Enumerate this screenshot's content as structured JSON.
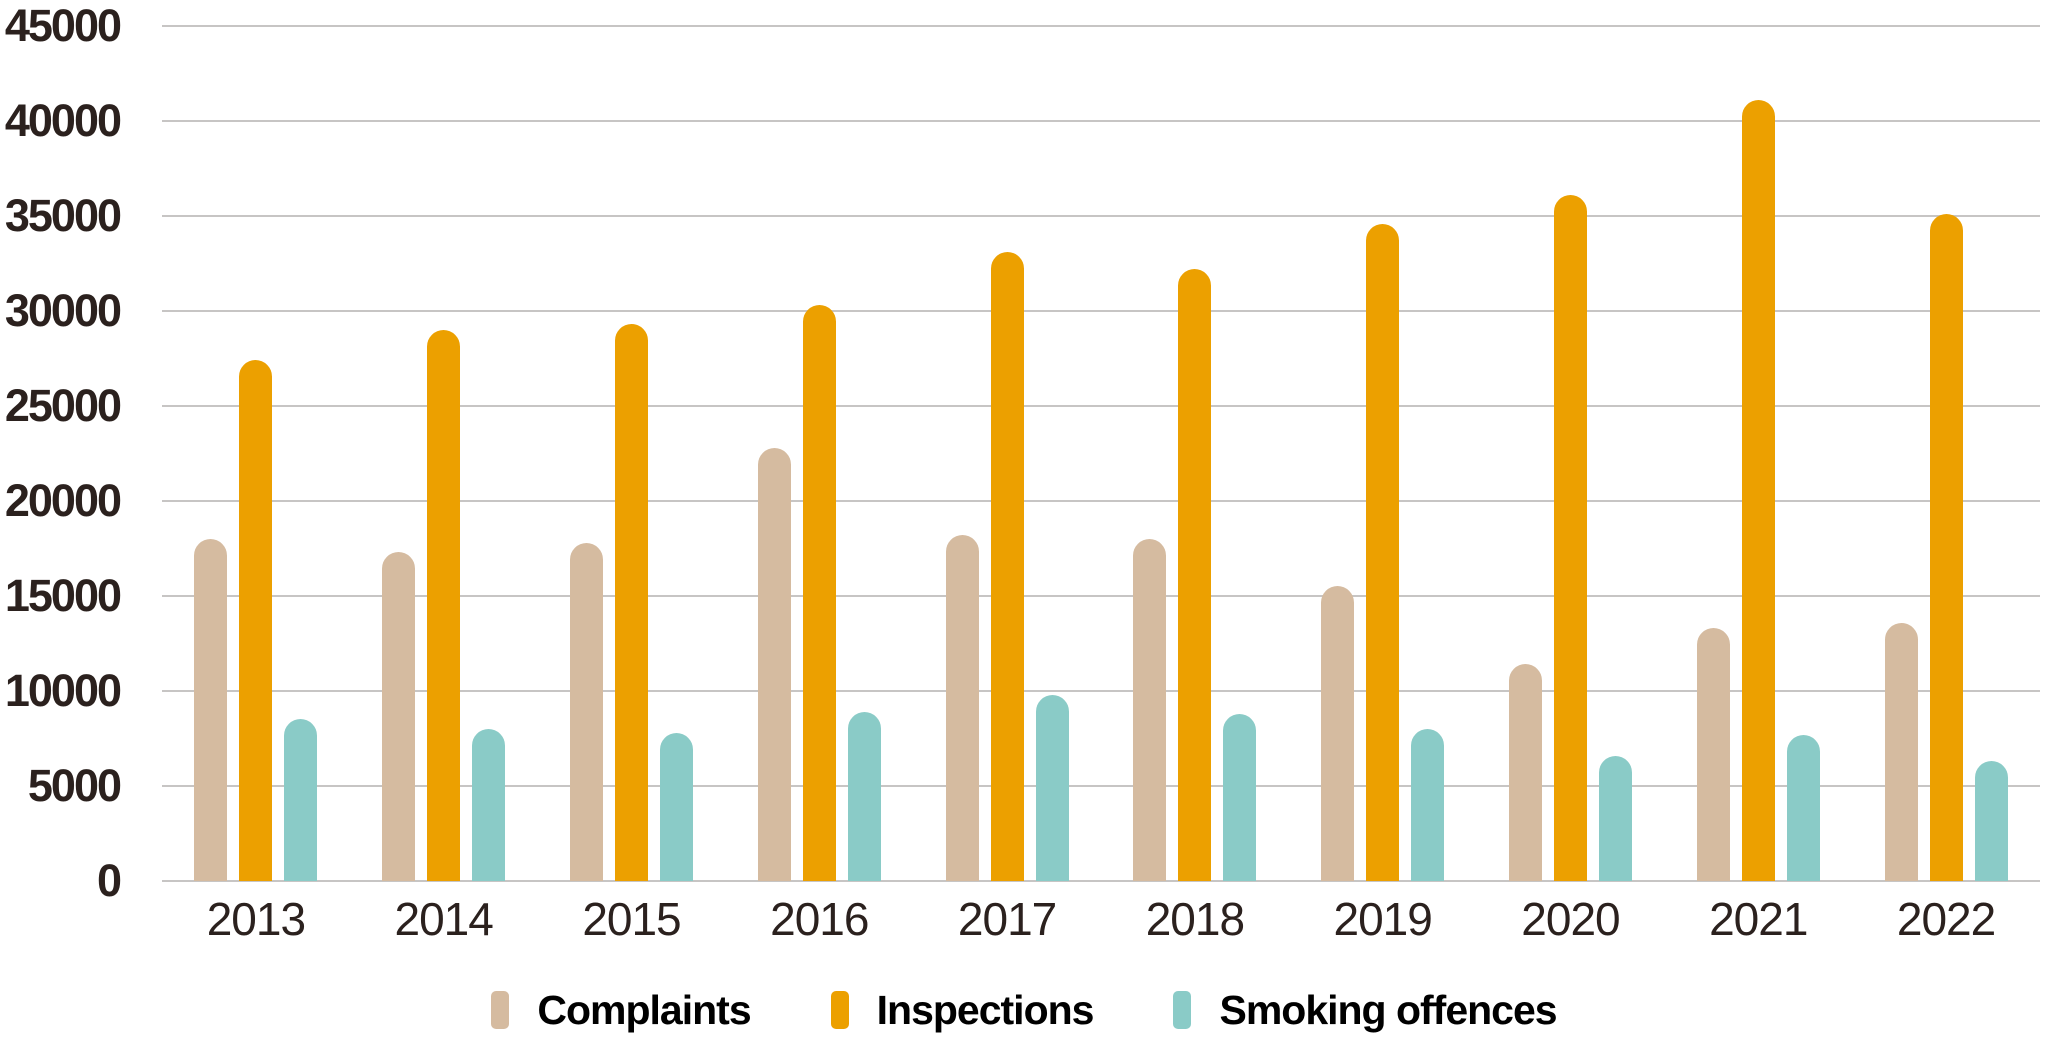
{
  "colors": {
    "background": "#ffffff",
    "text": "#2b211e",
    "gridline": "#c7c5c4",
    "complaints": "#d5bba0",
    "inspections": "#eca000",
    "smoking_offences": "#8acbc7"
  },
  "chart_data": {
    "type": "bar",
    "title": "",
    "categories": [
      "2013",
      "2014",
      "2015",
      "2016",
      "2017",
      "2018",
      "2019",
      "2020",
      "2021",
      "2022"
    ],
    "series": [
      {
        "name": "Complaints",
        "color": "#d5bba0",
        "values": [
          18000,
          17300,
          17800,
          22800,
          18200,
          18000,
          15500,
          11400,
          13300,
          13600
        ]
      },
      {
        "name": "Inspections",
        "color": "#eca000",
        "values": [
          27400,
          29000,
          29300,
          30300,
          33100,
          32200,
          34600,
          36100,
          41100,
          35100
        ]
      },
      {
        "name": "Smoking offences",
        "color": "#8acbc7",
        "values": [
          8500,
          8000,
          7800,
          8900,
          9800,
          8800,
          8000,
          6600,
          7700,
          6300
        ]
      }
    ],
    "ylim": [
      0,
      45000
    ],
    "y_tick_step": 5000,
    "y_ticks": [
      45000,
      40000,
      35000,
      30000,
      25000,
      20000,
      15000,
      10000,
      5000,
      0
    ],
    "grid": true,
    "legend_position": "bottom"
  }
}
